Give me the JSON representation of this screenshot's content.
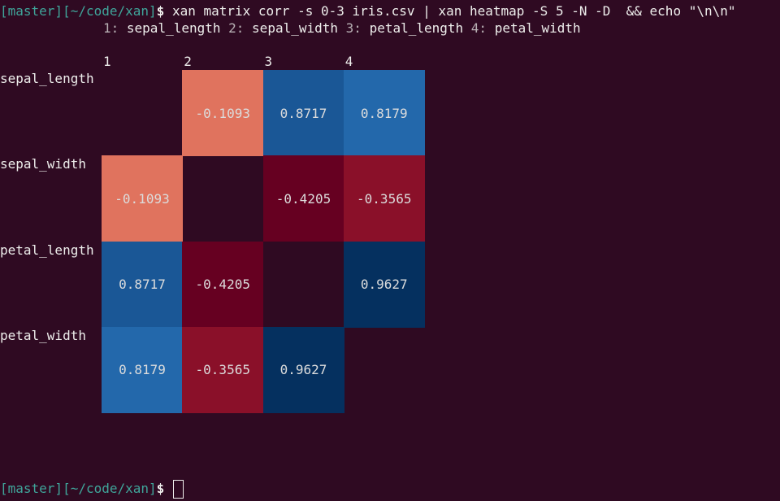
{
  "prompt_top": {
    "branch": "[master]",
    "path": "[~/code/xan]",
    "symbol": "$"
  },
  "command": "xan matrix corr -s 0-3 iris.csv | xan heatmap -S 5 -N -D  && echo \"\\n\\n\"",
  "legend": [
    {
      "key": "1:",
      "label": "sepal_length"
    },
    {
      "key": "2:",
      "label": "sepal_width"
    },
    {
      "key": "3:",
      "label": "petal_length"
    },
    {
      "key": "4:",
      "label": "petal_width"
    }
  ],
  "heatmap": {
    "columns": [
      "1",
      "2",
      "3",
      "4"
    ],
    "rows": [
      {
        "label": "sepal_length",
        "values": [
          null,
          -0.1093,
          0.8717,
          0.8179
        ],
        "colors": [
          null,
          "#e0735e",
          "#1a5796",
          "#2368ab"
        ]
      },
      {
        "label": "sepal_width",
        "values": [
          -0.1093,
          null,
          -0.4205,
          -0.3565
        ],
        "colors": [
          "#e0735e",
          null,
          "#660021",
          "#8a1029"
        ]
      },
      {
        "label": "petal_length",
        "values": [
          0.8717,
          -0.4205,
          null,
          0.9627
        ],
        "colors": [
          "#1a5796",
          "#660021",
          null,
          "#05305f"
        ]
      },
      {
        "label": "petal_width",
        "values": [
          0.8179,
          -0.3565,
          0.9627,
          null
        ],
        "colors": [
          "#2368ab",
          "#8a1029",
          "#05305f",
          null
        ]
      }
    ]
  },
  "prompt_bottom": {
    "branch": "[master]",
    "path": "[~/code/xan]",
    "symbol": "$"
  }
}
